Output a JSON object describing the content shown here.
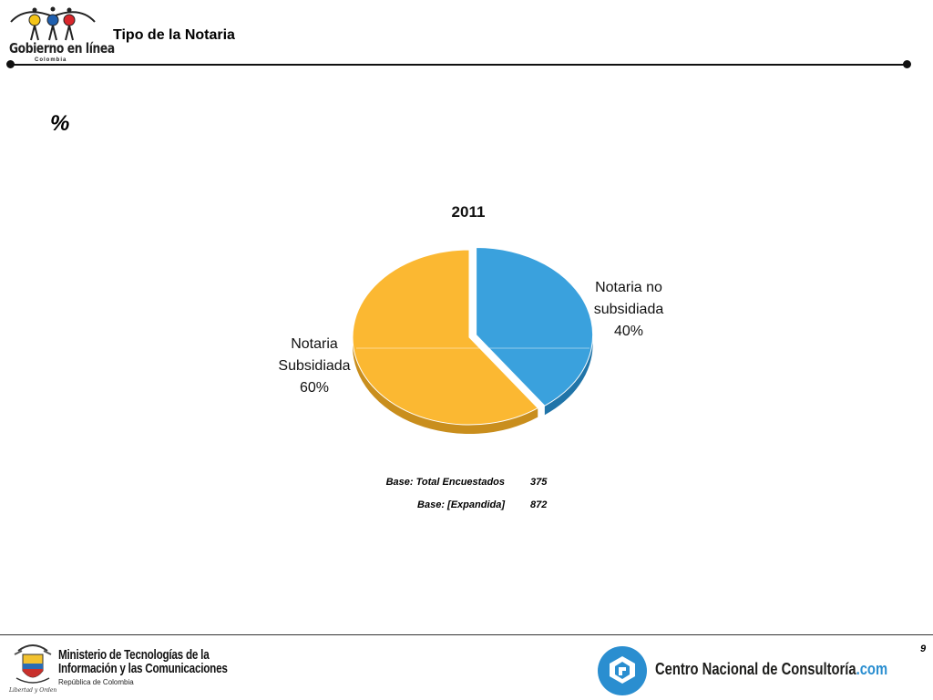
{
  "header": {
    "logo_name": "Gobierno en línea",
    "logo_country": "Colombia",
    "title": "Tipo de la Notaria"
  },
  "percent_symbol": "%",
  "chart_data": {
    "type": "pie",
    "title": "2011",
    "slices": [
      {
        "label_line1": "Notaria",
        "label_line2": "Subsidiada",
        "value": 60,
        "value_label": "60%",
        "color": "#fbb832",
        "side_color": "#c98e1d",
        "exploded": false
      },
      {
        "label_line1": "Notaria no",
        "label_line2": "subsidiada",
        "value": 40,
        "value_label": "40%",
        "color": "#3aa1dd",
        "side_color": "#2074a8",
        "exploded": true
      }
    ],
    "legend": "none"
  },
  "base": {
    "rows": [
      {
        "label": "Base: Total Encuestados",
        "value": "375"
      },
      {
        "label": "Base: [Expandida]",
        "value": "872"
      }
    ]
  },
  "footer": {
    "page_number": "9",
    "ministry_line1": "Ministerio de Tecnologías de la",
    "ministry_line2": "Información y las Comunicaciones",
    "ministry_line3": "República de Colombia",
    "ministry_motto": "Libertad y Orden",
    "cnc_name": "Centro Nacional de Consultoría",
    "cnc_domain": ".com"
  },
  "colors": {
    "cnc_blue": "#2a8ed0",
    "gel_yellow": "#f5c518",
    "gel_blue": "#1f5fae",
    "gel_red": "#d9262b"
  }
}
